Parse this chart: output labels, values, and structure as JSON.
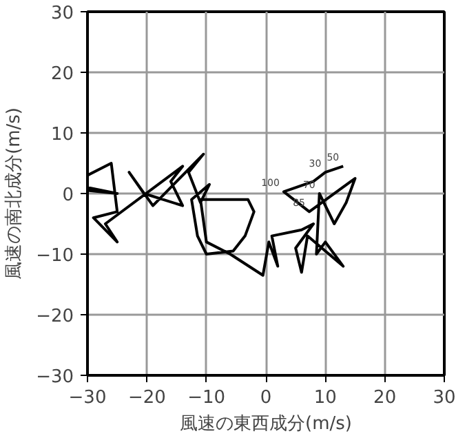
{
  "chart_data": {
    "type": "line",
    "xlabel": "風速の東西成分(m/s)",
    "ylabel": "風速の南北成分(m/s)",
    "x": [
      13,
      10,
      8,
      3,
      7.3,
      15,
      13.5,
      11.5,
      9,
      8.5,
      10,
      13,
      7,
      6,
      5,
      8,
      6,
      1,
      2,
      0.5,
      -0.5,
      -6,
      -10,
      -11,
      -7,
      -3,
      -2,
      -3.5,
      -5.5,
      -10,
      -11.5,
      -12.5,
      -9.5,
      -11,
      -13,
      -10.5,
      -19,
      -23,
      -20.5,
      -14,
      -16,
      -14,
      -27,
      -25,
      -29,
      -25,
      -26,
      -30,
      -30,
      -25,
      -30
    ],
    "series": [
      {
        "color": "#000000",
        "values": [
          4.5,
          3.5,
          2,
          0.3,
          -3,
          2.5,
          -1.5,
          -5,
          0,
          -10,
          -8,
          -12,
          -7,
          -13,
          -9,
          -5,
          -6,
          -7,
          -12,
          -8,
          -13.5,
          -10,
          -8,
          -1,
          -1,
          -1,
          -3,
          -7,
          -9.5,
          -10,
          -7,
          -1,
          1.5,
          -1.5,
          3.5,
          6.5,
          -2,
          3.5,
          0,
          -2,
          2,
          4.5,
          -5,
          -8,
          -4,
          -3,
          5,
          3,
          1,
          0,
          0.5
        ]
      }
    ],
    "annotations": [
      {
        "text": "50",
        "x": 13,
        "y": 4.5
      },
      {
        "text": "30",
        "x": 10,
        "y": 3.5
      },
      {
        "text": "100",
        "x": 3,
        "y": 0.3
      },
      {
        "text": "85",
        "x": 7.3,
        "y": -3
      },
      {
        "text": "70",
        "x": 9,
        "y": 0
      }
    ],
    "xlim": [
      -30,
      30
    ],
    "ylim": [
      -30,
      30
    ],
    "xticks": [
      -30,
      -20,
      -10,
      0,
      10,
      20,
      30
    ],
    "yticks": [
      -30,
      -20,
      -10,
      0,
      10,
      20,
      30
    ],
    "grid": true,
    "line_style": "solid",
    "marker": "none"
  }
}
